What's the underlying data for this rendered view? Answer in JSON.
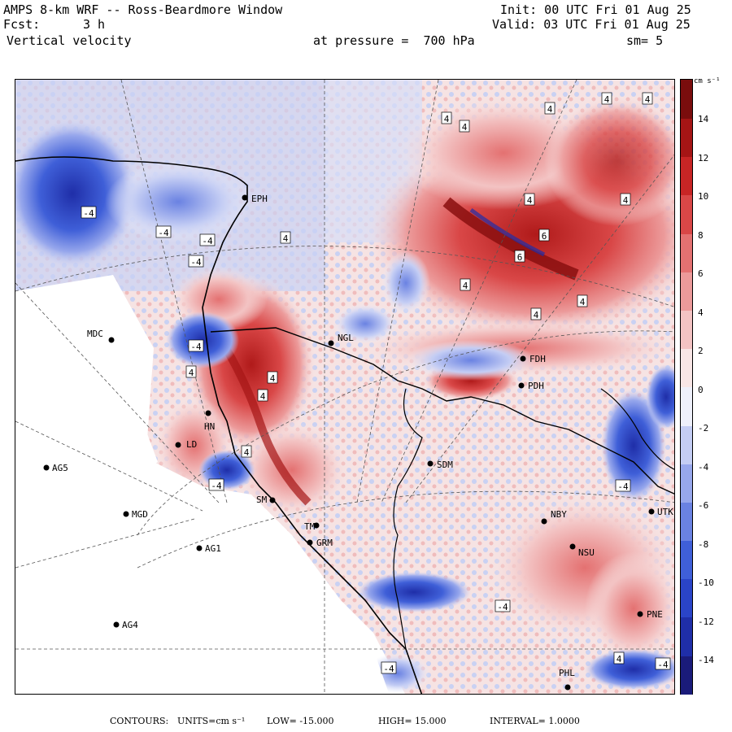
{
  "header": {
    "title": "AMPS 8-km WRF -- Ross-Beardmore Window",
    "forecast_label": "Fcst:",
    "forecast_hours": "3 h",
    "field": "Vertical velocity",
    "init": "Init: 00 UTC Fri 01 Aug 25",
    "valid": "Valid: 03 UTC Fri 01 Aug 25",
    "pressure": "at pressure =  700 hPa",
    "smoothing": "sm= 5"
  },
  "colorbar": {
    "unit": "cm s⁻¹",
    "labels": [
      "14",
      "12",
      "10",
      "8",
      "6",
      "4",
      "2",
      "0",
      "-2",
      "-4",
      "-6",
      "-8",
      "-10",
      "-12",
      "-14"
    ],
    "colors": [
      "#1a1b7a",
      "#1f2ea8",
      "#2a44c8",
      "#3f5fd8",
      "#6a82e2",
      "#97a7ec",
      "#c4cdf4",
      "#eef0fb",
      "#f8e6e6",
      "#f3c3c3",
      "#ec9a9a",
      "#e47171",
      "#d94747",
      "#c82525",
      "#a51515",
      "#7a0d0d"
    ]
  },
  "stations": [
    {
      "name": "MDC"
    },
    {
      "name": "NGL"
    },
    {
      "name": "EPH"
    },
    {
      "name": "SDM"
    },
    {
      "name": "AG5"
    },
    {
      "name": "MGD"
    },
    {
      "name": "AG1"
    },
    {
      "name": "AG4"
    },
    {
      "name": "GRM"
    },
    {
      "name": "NBY"
    },
    {
      "name": "NSU"
    },
    {
      "name": "PNE"
    },
    {
      "name": "PHL"
    },
    {
      "name": "HN"
    },
    {
      "name": "LD"
    },
    {
      "name": "SM"
    },
    {
      "name": "TM"
    },
    {
      "name": "UTK"
    },
    {
      "name": "FDH"
    },
    {
      "name": "PDH"
    }
  ],
  "contour_labels": [
    "4",
    "4",
    "4",
    "4",
    "4",
    "4",
    "4",
    "4",
    "4",
    "-4",
    "-4",
    "-4",
    "-4",
    "-4",
    "-4",
    "4",
    "-4",
    "4",
    "-4",
    "-4",
    "4",
    "-4",
    "4",
    "4",
    "4",
    "6",
    "6",
    "4"
  ],
  "footer": {
    "contours_label": "CONTOURS:",
    "units_label": "UNITS=cm s⁻¹",
    "low": "LOW= -15.000",
    "high": "HIGH= 15.000",
    "interval": "INTERVAL= 1.0000"
  }
}
